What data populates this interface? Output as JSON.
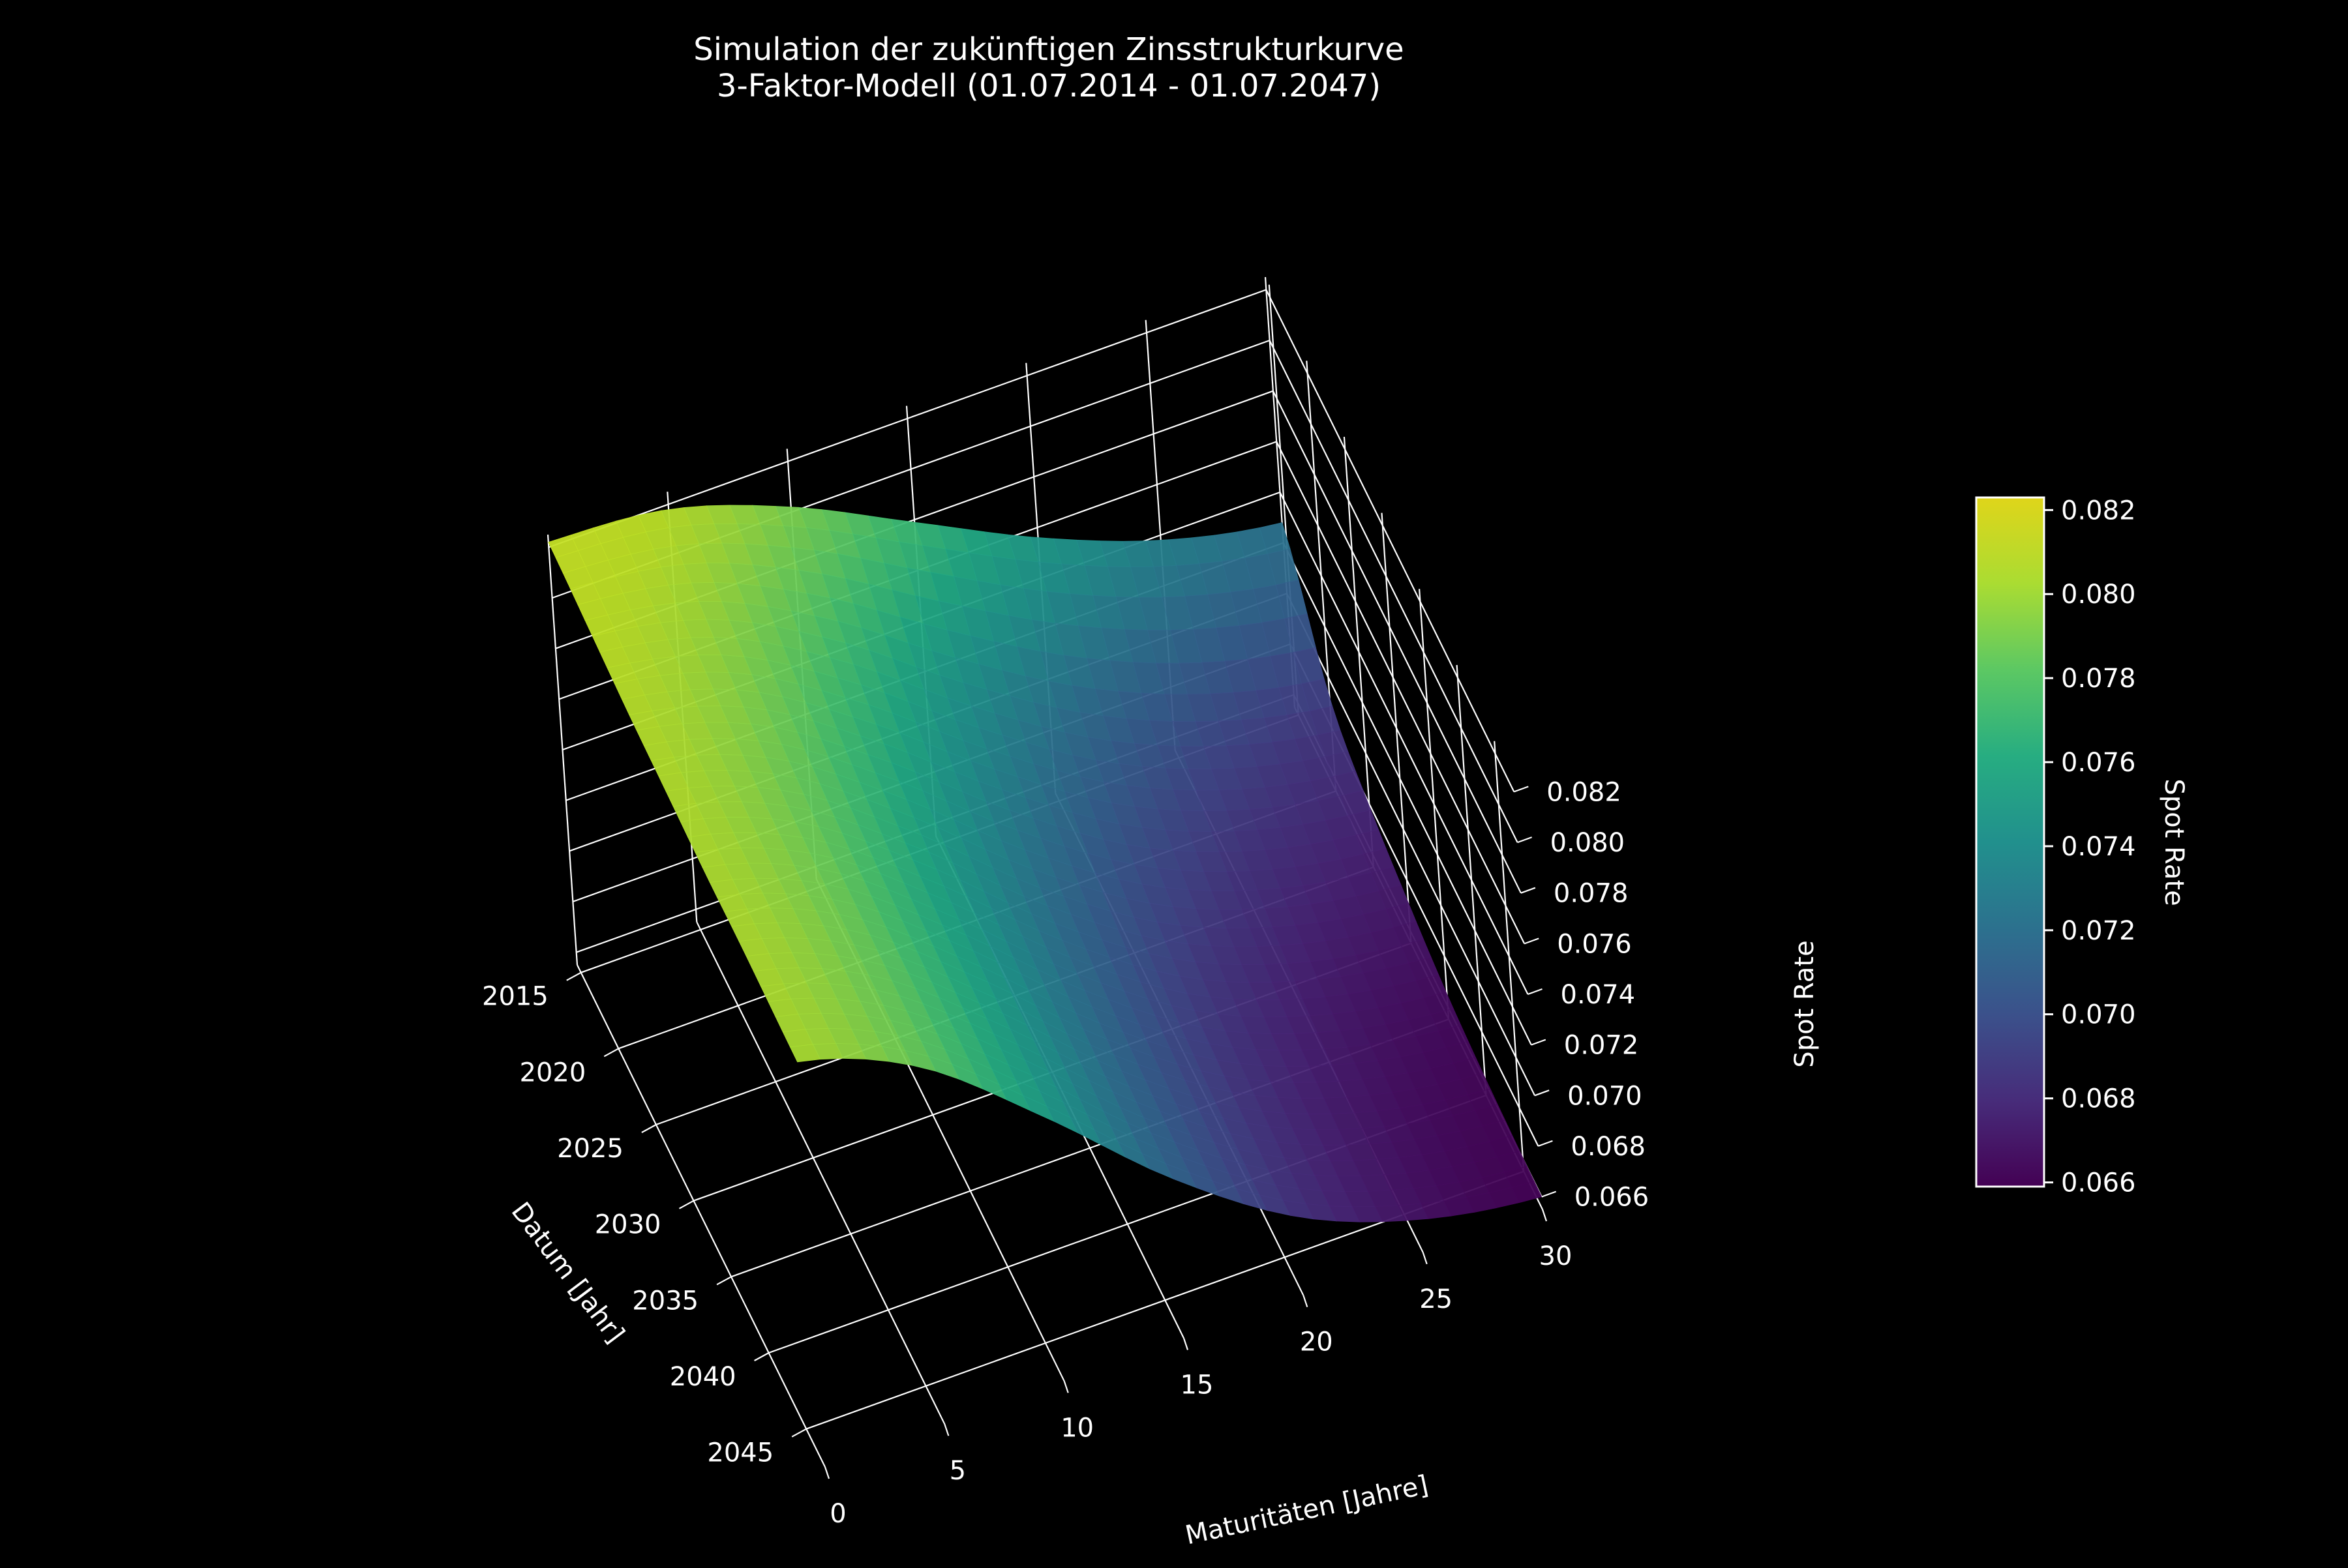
{
  "chart_data": {
    "type": "surface",
    "title": "Simulation der zukünftigen Zinsstrukturkurve",
    "subtitle": "3-Faktor-Modell (01.07.2014 - 01.07.2047)",
    "xlabel": "Maturitäten [Jahre]",
    "ylabel": "Datum [Jahr]",
    "zlabel": "Spot Rate",
    "colorbar_label": "Spot Rate",
    "colormap": "viridis",
    "background": "#000000",
    "grid": true,
    "x_ticks": [
      "0",
      "5",
      "10",
      "15",
      "20",
      "25",
      "30"
    ],
    "y_ticks": [
      "2015",
      "2020",
      "2025",
      "2030",
      "2035",
      "2040",
      "2045"
    ],
    "z_ticks": [
      "0.066",
      "0.068",
      "0.070",
      "0.072",
      "0.074",
      "0.076",
      "0.078",
      "0.080",
      "0.082"
    ],
    "colorbar_ticks": [
      "0.066",
      "0.068",
      "0.070",
      "0.072",
      "0.074",
      "0.076",
      "0.078",
      "0.080",
      "0.082"
    ],
    "xlim": [
      0,
      30
    ],
    "ylim": [
      2014.5,
      2047.5
    ],
    "zlim": [
      0.0655,
      0.0825
    ],
    "colorbar_range": [
      0.0659,
      0.0823
    ],
    "surface": {
      "maturities": [
        0,
        5,
        10,
        15,
        20,
        25,
        30
      ],
      "dates": [
        2014.5,
        2020,
        2025,
        2030,
        2035,
        2040,
        2047.5
      ],
      "spot_rates": [
        [
          0.0822,
          0.0818,
          0.0802,
          0.0779,
          0.0756,
          0.0738,
          0.0728
        ],
        [
          0.082,
          0.081,
          0.0785,
          0.0752,
          0.0723,
          0.0703,
          0.0692
        ],
        [
          0.0818,
          0.0804,
          0.0774,
          0.0738,
          0.0707,
          0.0688,
          0.0679
        ],
        [
          0.0817,
          0.08,
          0.0767,
          0.0728,
          0.0697,
          0.0679,
          0.0671
        ],
        [
          0.0816,
          0.0798,
          0.0763,
          0.0723,
          0.0691,
          0.0673,
          0.0665
        ],
        [
          0.0816,
          0.0797,
          0.0761,
          0.072,
          0.0688,
          0.067,
          0.0662
        ],
        [
          0.0815,
          0.0796,
          0.0759,
          0.0718,
          0.0686,
          0.0668,
          0.066
        ]
      ]
    }
  }
}
